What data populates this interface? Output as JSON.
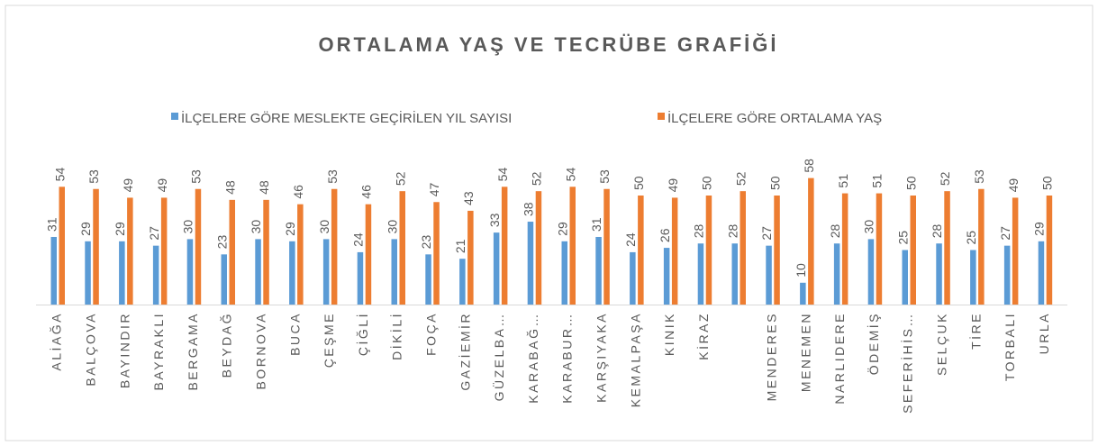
{
  "chart_data": {
    "type": "bar",
    "title": "ORTALAMA YAŞ VE TECRÜBE GRAFİĞİ",
    "categories": [
      "ALİAĞA",
      "BALÇOVA",
      "BAYINDIR",
      "BAYRAKLI",
      "BERGAMA",
      "BEYDAĞ",
      "BORNOVA",
      "BUCA",
      "ÇEŞME",
      "ÇİĞLİ",
      "DİKİLİ",
      "FOÇA",
      "GAZİEMİR",
      "GÜZELBA…",
      "KARABAĞ…",
      "KARABUR…",
      "KARŞIYAKA",
      "KEMALPAŞA",
      "KINIK",
      "KİRAZ",
      null,
      "MENDERES",
      "MENEMEN",
      "NARLIDERE",
      "ÖDEMİŞ",
      "SEFERİHİS…",
      "SELÇUK",
      "TİRE",
      "TORBALI",
      "URLA"
    ],
    "series": [
      {
        "name": "İLÇELERE GÖRE MESLEKTE GEÇİRİLEN YIL SAYISI",
        "color": "#5b9bd5",
        "values": [
          31,
          29,
          29,
          27,
          30,
          23,
          30,
          29,
          30,
          24,
          30,
          23,
          21,
          33,
          38,
          29,
          31,
          24,
          26,
          28,
          28,
          27,
          10,
          28,
          30,
          25,
          28,
          25,
          27,
          29
        ]
      },
      {
        "name": "İLÇELERE GÖRE ORTALAMA YAŞ",
        "color": "#ed7d31",
        "values": [
          54,
          53,
          49,
          49,
          53,
          48,
          48,
          46,
          53,
          46,
          52,
          47,
          43,
          54,
          52,
          54,
          53,
          50,
          49,
          50,
          52,
          50,
          58,
          51,
          51,
          50,
          52,
          53,
          49,
          50
        ]
      }
    ],
    "legend": "top"
  }
}
